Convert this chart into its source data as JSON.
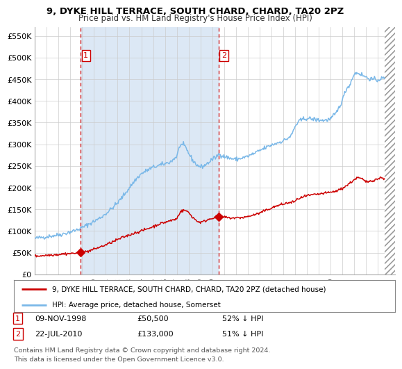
{
  "title": "9, DYKE HILL TERRACE, SOUTH CHARD, CHARD, TA20 2PZ",
  "subtitle": "Price paid vs. HM Land Registry's House Price Index (HPI)",
  "legend_line1": "9, DYKE HILL TERRACE, SOUTH CHARD, CHARD, TA20 2PZ (detached house)",
  "legend_line2": "HPI: Average price, detached house, Somerset",
  "footnote": "Contains HM Land Registry data © Crown copyright and database right 2024.\nThis data is licensed under the Open Government Licence v3.0.",
  "purchase1_year": 1998.86,
  "purchase1_price": 50500,
  "purchase2_year": 2010.55,
  "purchase2_price": 133000,
  "vline1_x": 1998.86,
  "vline2_x": 2010.55,
  "shade_start": 1998.86,
  "shade_end": 2010.55,
  "hpi_color": "#7ab8e8",
  "price_color": "#cc0000",
  "shade_color": "#dce8f5",
  "plot_bg": "#ffffff",
  "ylim_min": 0,
  "ylim_max": 570000,
  "xlim_start": 1995.0,
  "xlim_end": 2025.5,
  "ylabel_ticks": [
    0,
    50000,
    100000,
    150000,
    200000,
    250000,
    300000,
    350000,
    400000,
    450000,
    500000,
    550000
  ],
  "ylabel_labels": [
    "£0",
    "£50K",
    "£100K",
    "£150K",
    "£200K",
    "£250K",
    "£300K",
    "£350K",
    "£400K",
    "£450K",
    "£500K",
    "£550K"
  ],
  "xtick_years": [
    1995,
    1996,
    1997,
    1998,
    1999,
    2000,
    2001,
    2002,
    2003,
    2004,
    2005,
    2006,
    2007,
    2008,
    2009,
    2010,
    2011,
    2012,
    2013,
    2014,
    2015,
    2016,
    2017,
    2018,
    2019,
    2020,
    2021,
    2022,
    2023,
    2024,
    2025
  ],
  "row1_num": "1",
  "row1_date": "09-NOV-1998",
  "row1_price": "£50,500",
  "row1_hpi": "52% ↓ HPI",
  "row2_num": "2",
  "row2_date": "22-JUL-2010",
  "row2_price": "£133,000",
  "row2_hpi": "51% ↓ HPI"
}
